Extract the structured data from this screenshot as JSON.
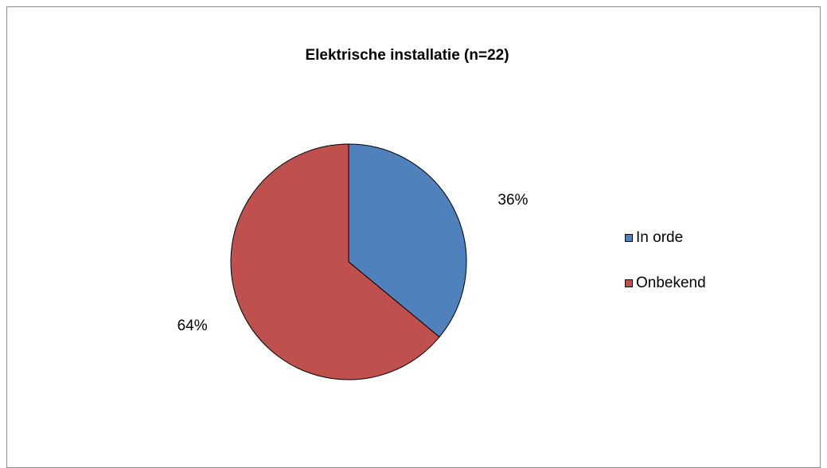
{
  "chart_data": {
    "type": "pie",
    "title": "Elektrische installatie (n=22)",
    "categories": [
      "In orde",
      "Onbekend"
    ],
    "values": [
      36,
      64
    ],
    "labels": [
      "36%",
      "64%"
    ],
    "colors": [
      "#4f81bd",
      "#c0504d"
    ],
    "legend_position": "right"
  }
}
